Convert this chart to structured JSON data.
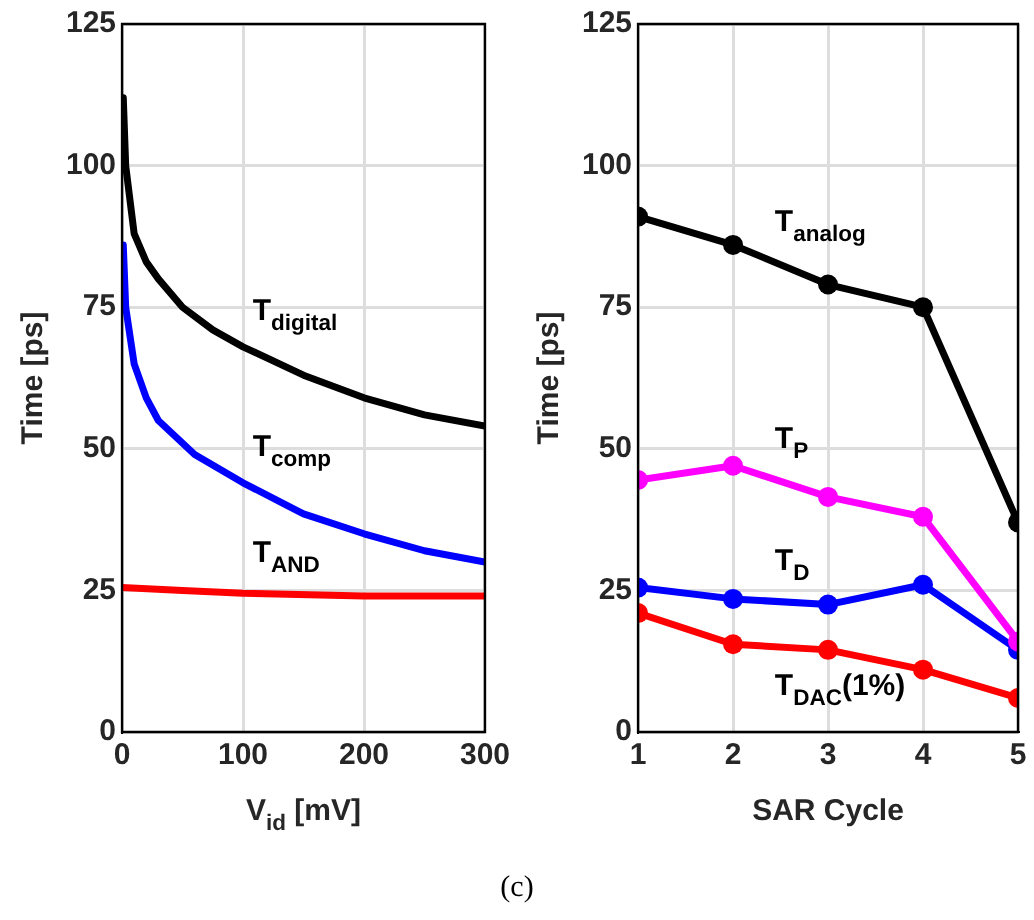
{
  "chart_data": [
    {
      "type": "line",
      "xlabel": "V$_{id}$ [mV]",
      "ylabel": "Time [ps]",
      "xlim": [
        0,
        300
      ],
      "xticks": [
        0,
        100,
        200,
        300
      ],
      "ylim": [
        0,
        125
      ],
      "yticks": [
        0,
        25,
        50,
        75,
        100,
        125
      ],
      "grid": true,
      "marker": "none",
      "line_style": "solid",
      "series": [
        {
          "name": "T$_{digital}$",
          "color": "#000000",
          "x": [
            1,
            3,
            10,
            20,
            30,
            50,
            75,
            100,
            150,
            200,
            250,
            300
          ],
          "values": [
            112,
            100,
            88,
            83,
            80,
            75,
            71,
            68,
            63,
            59,
            56,
            54
          ]
        },
        {
          "name": "T$_{comp}$",
          "color": "#0000ff",
          "x": [
            1,
            3,
            10,
            20,
            30,
            60,
            100,
            150,
            200,
            250,
            300
          ],
          "values": [
            86,
            75,
            65,
            59,
            55,
            49,
            44,
            38.5,
            35,
            32,
            30
          ]
        },
        {
          "name": "T$_{AND}$",
          "color": "#ff0000",
          "x": [
            0,
            50,
            100,
            200,
            300
          ],
          "values": [
            25.5,
            25,
            24.5,
            24,
            24
          ]
        }
      ],
      "annotations": [
        "(c)"
      ]
    },
    {
      "type": "line",
      "xlabel": "SAR Cycle",
      "ylabel": "Time [ps]",
      "xlim": [
        1,
        5
      ],
      "xticks": [
        1,
        2,
        3,
        4,
        5
      ],
      "ylim": [
        0,
        125
      ],
      "yticks": [
        0,
        25,
        50,
        75,
        100,
        125
      ],
      "grid": true,
      "marker": "circle",
      "line_style": "solid",
      "x": [
        1,
        2,
        3,
        4,
        5
      ],
      "series": [
        {
          "name": "T$_{analog}$",
          "color": "#000000",
          "values": [
            91,
            86,
            79,
            75,
            37
          ]
        },
        {
          "name": "T$_{P}$",
          "color": "#ff00ff",
          "values": [
            44.5,
            47,
            41.5,
            38,
            16
          ]
        },
        {
          "name": "T$_{D}$",
          "color": "#0000ff",
          "values": [
            25.5,
            23.5,
            22.5,
            26,
            14.5
          ]
        },
        {
          "name": "T$_{DAC}$(1%)",
          "color": "#ff0000",
          "values": [
            21,
            15.5,
            14.5,
            11,
            6
          ]
        }
      ]
    }
  ]
}
